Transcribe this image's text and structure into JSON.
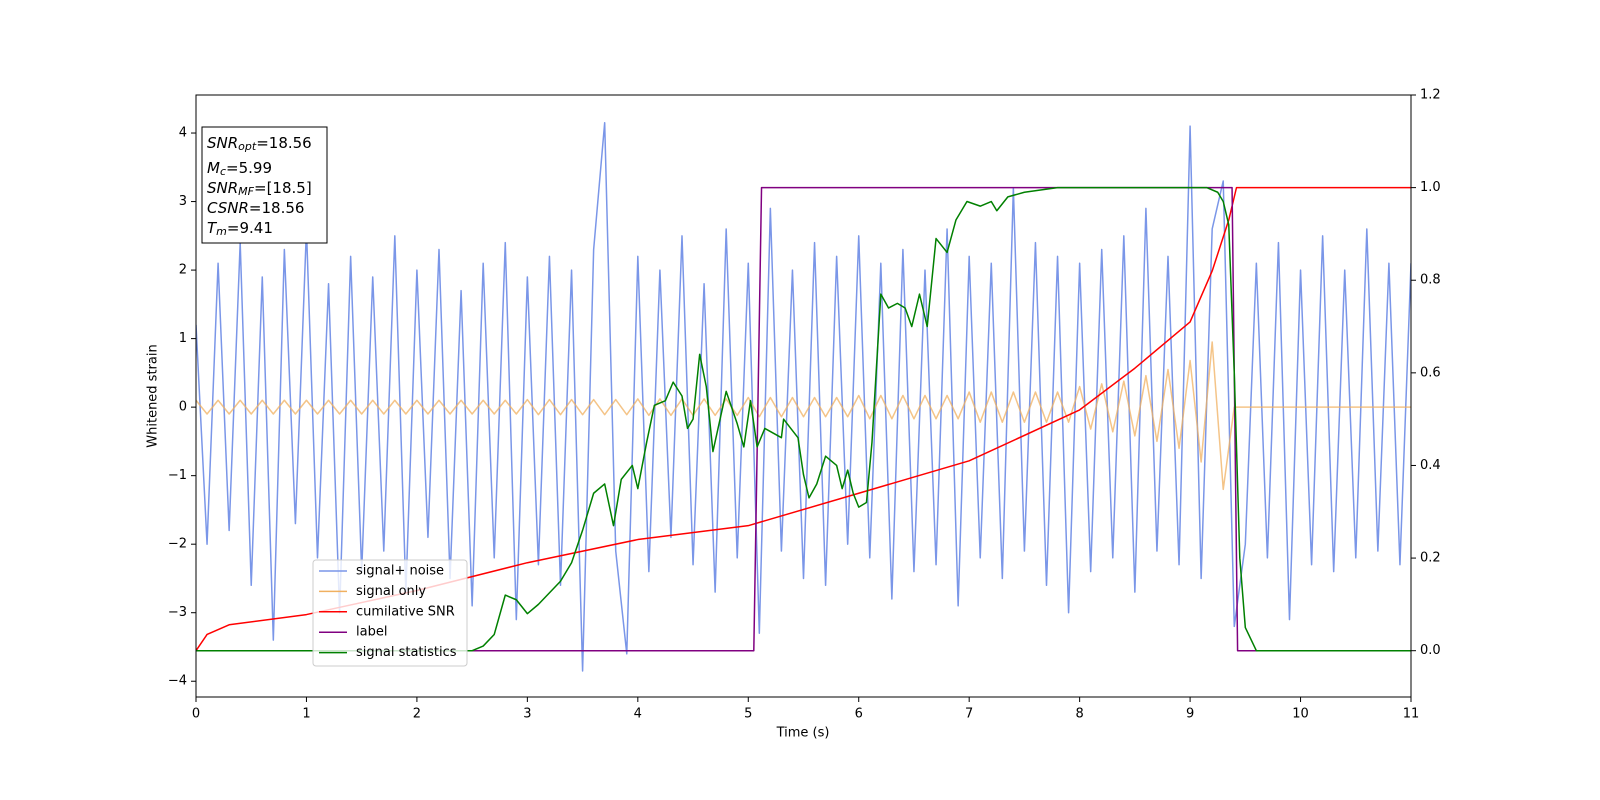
{
  "chart_data": {
    "type": "line",
    "xlabel": "Time (s)",
    "ylabel": "Whitened strain",
    "xlim": [
      0,
      11
    ],
    "ylim": [
      -4.23,
      4.555
    ],
    "y2lim": [
      -0.1,
      1.2
    ],
    "xticks": [
      0,
      1,
      2,
      3,
      4,
      5,
      6,
      7,
      8,
      9,
      10,
      11
    ],
    "yticks": [
      {
        "value": -4,
        "label": "−4"
      },
      {
        "value": -3,
        "label": "−3"
      },
      {
        "value": -2,
        "label": "−2"
      },
      {
        "value": -1,
        "label": "−1"
      },
      0,
      1,
      2,
      3,
      4
    ],
    "y2ticks": [
      {
        "value": 0,
        "label": "0.0"
      },
      0.2,
      0.4,
      0.6,
      0.8,
      {
        "value": 1,
        "label": "1.0"
      },
      1.2
    ],
    "legend": "lower left",
    "annotation": [
      {
        "base": "SNR",
        "sub": "opt",
        "text": "=18.56"
      },
      {
        "base": "M",
        "sub": "c",
        "text": "=5.99"
      },
      {
        "base": "SNR",
        "sub": "MF",
        "text": "=[18.5]"
      },
      {
        "base": "CSNR",
        "text": "=18.56"
      },
      {
        "base": "T",
        "sub": "m",
        "text": "=9.41"
      }
    ],
    "x": [
      0,
      0.1,
      0.2,
      0.3,
      0.4,
      0.5,
      0.6,
      0.7,
      0.8,
      0.9,
      1,
      1.1,
      1.2,
      1.3,
      1.4,
      1.5,
      1.6,
      1.7,
      1.8,
      1.9,
      2,
      2.1,
      2.2,
      2.3,
      2.4,
      2.5,
      2.6,
      2.7,
      2.8,
      2.9,
      3,
      3.1,
      3.2,
      3.3,
      3.4,
      3.5,
      3.6,
      3.7,
      3.8,
      3.9,
      4,
      4.1,
      4.2,
      4.3,
      4.4,
      4.5,
      4.6,
      4.7,
      4.8,
      4.9,
      5,
      5.1,
      5.2,
      5.3,
      5.4,
      5.5,
      5.6,
      5.7,
      5.8,
      5.9,
      6,
      6.1,
      6.2,
      6.3,
      6.4,
      6.5,
      6.6,
      6.7,
      6.8,
      6.9,
      7,
      7.1,
      7.2,
      7.3,
      7.4,
      7.5,
      7.6,
      7.7,
      7.8,
      7.9,
      8,
      8.1,
      8.2,
      8.3,
      8.4,
      8.5,
      8.6,
      8.7,
      8.8,
      8.9,
      9,
      9.1,
      9.2,
      9.3,
      9.4,
      9.5,
      9.6,
      9.7,
      9.8,
      9.9,
      10,
      10.1,
      10.2,
      10.3,
      10.4,
      10.5,
      10.6,
      10.7,
      10.8,
      10.9,
      11
    ],
    "series": [
      {
        "name": "signal+ noise",
        "color": "#7a96e8",
        "values": [
          1.2,
          -2.0,
          2.1,
          -1.8,
          2.4,
          -2.6,
          1.9,
          -3.4,
          2.3,
          -1.7,
          2.6,
          -2.2,
          1.8,
          -3.0,
          2.2,
          -2.4,
          1.9,
          -2.1,
          2.5,
          -2.7,
          2.0,
          -1.9,
          2.3,
          -2.5,
          1.7,
          -2.9,
          2.1,
          -2.2,
          2.4,
          -3.1,
          1.9,
          -2.3,
          2.2,
          -2.6,
          2.0,
          -3.85,
          2.3,
          4.15,
          -2.1,
          -3.6,
          2.2,
          -2.4,
          2.0,
          -1.9,
          2.5,
          -2.3,
          1.8,
          -2.7,
          2.6,
          -2.2,
          2.1,
          -3.3,
          2.9,
          -2.1,
          2.0,
          -2.5,
          2.4,
          -2.6,
          2.2,
          -2.0,
          2.5,
          -2.2,
          2.1,
          -2.8,
          2.3,
          -2.4,
          2.0,
          -2.3,
          2.6,
          -2.9,
          2.2,
          -2.2,
          2.1,
          -2.5,
          3.2,
          -2.1,
          2.4,
          -2.6,
          2.2,
          -3.0,
          2.1,
          -2.4,
          2.3,
          -2.2,
          2.5,
          -2.7,
          2.9,
          -2.1,
          2.2,
          -2.3,
          4.1,
          -2.5,
          2.6,
          3.3,
          -3.2,
          -2.0,
          2.1,
          -2.2,
          2.4,
          -3.1,
          2.0,
          -2.3,
          2.5,
          -2.4,
          2.0,
          -2.2,
          2.6,
          -2.1,
          2.1,
          -2.3,
          2.1
        ]
      },
      {
        "name": "signal only",
        "color": "#f0b060",
        "values": [
          0.1,
          -0.1,
          0.1,
          -0.1,
          0.1,
          -0.1,
          0.1,
          -0.1,
          0.1,
          -0.1,
          0.1,
          -0.1,
          0.1,
          -0.1,
          0.1,
          -0.1,
          0.1,
          -0.1,
          0.1,
          -0.1,
          0.1,
          -0.1,
          0.1,
          -0.1,
          0.1,
          -0.1,
          0.1,
          -0.1,
          0.1,
          -0.1,
          0.11,
          -0.11,
          0.11,
          -0.11,
          0.11,
          -0.11,
          0.11,
          -0.11,
          0.11,
          -0.11,
          0.12,
          -0.12,
          0.12,
          -0.12,
          0.12,
          -0.12,
          0.12,
          -0.12,
          0.12,
          -0.12,
          0.14,
          -0.14,
          0.14,
          -0.14,
          0.14,
          -0.14,
          0.14,
          -0.14,
          0.14,
          -0.14,
          0.17,
          -0.17,
          0.17,
          -0.17,
          0.17,
          -0.17,
          0.17,
          -0.17,
          0.17,
          -0.17,
          0.22,
          -0.22,
          0.22,
          -0.22,
          0.22,
          -0.22,
          0.22,
          -0.22,
          0.22,
          -0.22,
          0.3,
          -0.32,
          0.34,
          -0.36,
          0.38,
          -0.42,
          0.46,
          -0.5,
          0.55,
          -0.6,
          0.68,
          -0.8,
          0.95,
          -1.2,
          0,
          0,
          0,
          0,
          0,
          0,
          0,
          0,
          0,
          0,
          0,
          0,
          0,
          0,
          0,
          0,
          0
        ]
      },
      {
        "name": "cumilative SNR",
        "color": "#ff0000",
        "axis": "y2",
        "x": [
          0,
          0.1,
          0.3,
          1,
          2,
          3,
          4,
          5,
          6,
          7,
          8,
          8.5,
          9,
          9.2,
          9.35,
          9.42,
          11
        ],
        "values": [
          0,
          0.035,
          0.056,
          0.078,
          0.13,
          0.19,
          0.24,
          0.27,
          0.34,
          0.41,
          0.52,
          0.61,
          0.71,
          0.82,
          0.93,
          1.0,
          1.0
        ]
      },
      {
        "name": "label",
        "color": "#800080",
        "axis": "y2",
        "x": [
          0,
          5.05,
          5.12,
          9.38,
          9.43,
          11
        ],
        "values": [
          0,
          0,
          1,
          1,
          0,
          0
        ]
      },
      {
        "name": "signal statistics",
        "color": "#008000",
        "axis": "y2",
        "x": [
          0,
          2.5,
          2.6,
          2.7,
          2.8,
          2.9,
          3.0,
          3.1,
          3.3,
          3.4,
          3.5,
          3.6,
          3.7,
          3.78,
          3.85,
          3.95,
          4.0,
          4.08,
          4.15,
          4.25,
          4.32,
          4.4,
          4.45,
          4.5,
          4.56,
          4.62,
          4.68,
          4.8,
          4.9,
          4.96,
          5.02,
          5.08,
          5.15,
          5.3,
          5.32,
          5.45,
          5.5,
          5.55,
          5.62,
          5.7,
          5.8,
          5.85,
          5.9,
          5.95,
          6.0,
          6.07,
          6.12,
          6.2,
          6.27,
          6.35,
          6.42,
          6.48,
          6.55,
          6.62,
          6.7,
          6.8,
          6.88,
          6.98,
          7.1,
          7.2,
          7.25,
          7.35,
          7.5,
          7.8,
          9.15,
          9.25,
          9.3,
          9.35,
          9.4,
          9.45,
          9.5,
          9.6,
          11
        ],
        "values": [
          0,
          0,
          0.01,
          0.035,
          0.12,
          0.11,
          0.08,
          0.1,
          0.15,
          0.19,
          0.26,
          0.34,
          0.36,
          0.27,
          0.37,
          0.4,
          0.35,
          0.45,
          0.53,
          0.54,
          0.58,
          0.55,
          0.48,
          0.5,
          0.64,
          0.57,
          0.43,
          0.56,
          0.49,
          0.44,
          0.54,
          0.44,
          0.48,
          0.46,
          0.5,
          0.46,
          0.38,
          0.33,
          0.36,
          0.42,
          0.4,
          0.35,
          0.39,
          0.34,
          0.31,
          0.32,
          0.45,
          0.77,
          0.74,
          0.75,
          0.74,
          0.7,
          0.77,
          0.7,
          0.89,
          0.86,
          0.93,
          0.97,
          0.96,
          0.97,
          0.95,
          0.98,
          0.99,
          1.0,
          1.0,
          0.99,
          0.97,
          0.92,
          0.6,
          0.2,
          0.05,
          0,
          0
        ]
      }
    ]
  }
}
